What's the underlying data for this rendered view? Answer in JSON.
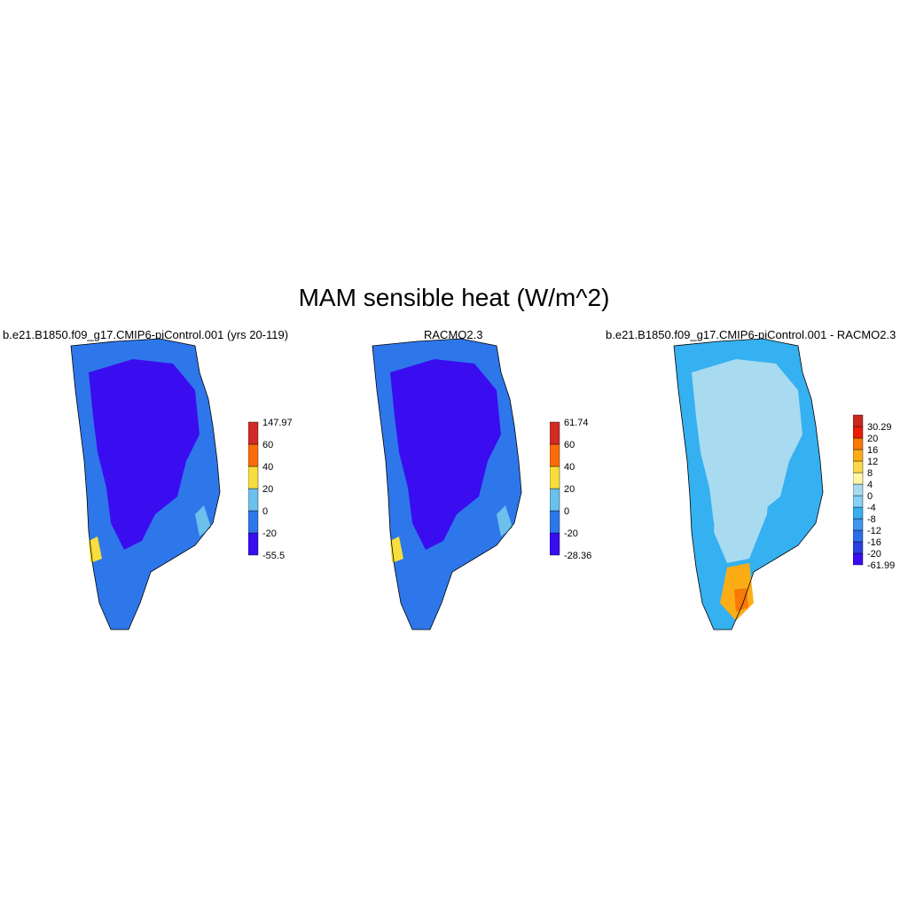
{
  "figure": {
    "title": "MAM sensible heat (W/m^2)"
  },
  "panels": [
    {
      "id": "model",
      "title": "b.e21.B1850.f09_g17.CMIP6-piControl.001 (yrs 20-119)",
      "colorbar": {
        "colors": [
          "#3a0df0",
          "#2e77ea",
          "#6cc0ec",
          "#f8de3c",
          "#fb6d0a",
          "#d12b25"
        ],
        "labels": [
          "-55.5",
          "-20",
          "0",
          "20",
          "40",
          "60",
          "147.97"
        ]
      },
      "dominant_colors": {
        "interior": "#3a0df0",
        "margin": "#2e77ea",
        "coast": "#6cc0ec",
        "warm": "#f8de3c"
      }
    },
    {
      "id": "obs",
      "title": "RACMO2.3",
      "colorbar": {
        "colors": [
          "#3a0df0",
          "#2e77ea",
          "#6cc0ec",
          "#f8de3c",
          "#fb6d0a",
          "#d12b25"
        ],
        "labels": [
          "-28.36",
          "-20",
          "0",
          "20",
          "40",
          "60",
          "61.74"
        ]
      },
      "dominant_colors": {
        "interior": "#3a0df0",
        "margin": "#2e77ea",
        "coast": "#6cc0ec",
        "warm": "#f8de3c"
      }
    },
    {
      "id": "diff",
      "title": "b.e21.B1850.f09_g17.CMIP6-piControl.001 - RACMO2.3",
      "colorbar": {
        "colors": [
          "#3a0df0",
          "#2c3fe0",
          "#2e6fe8",
          "#3f96f0",
          "#35b0f0",
          "#86d0f2",
          "#a8daf0",
          "#fff7a6",
          "#fcd94a",
          "#fcad16",
          "#f87808",
          "#e81e08",
          "#c8281e"
        ],
        "labels": [
          "-61.99",
          "-20",
          "-16",
          "-12",
          "-8",
          "-4",
          "0",
          "4",
          "8",
          "12",
          "16",
          "20",
          "30.29"
        ]
      },
      "dominant_colors": {
        "interior": "#a8daf0",
        "margin": "#35b0f0",
        "coast": "#3a0df0",
        "warm": "#fcad16"
      }
    }
  ]
}
